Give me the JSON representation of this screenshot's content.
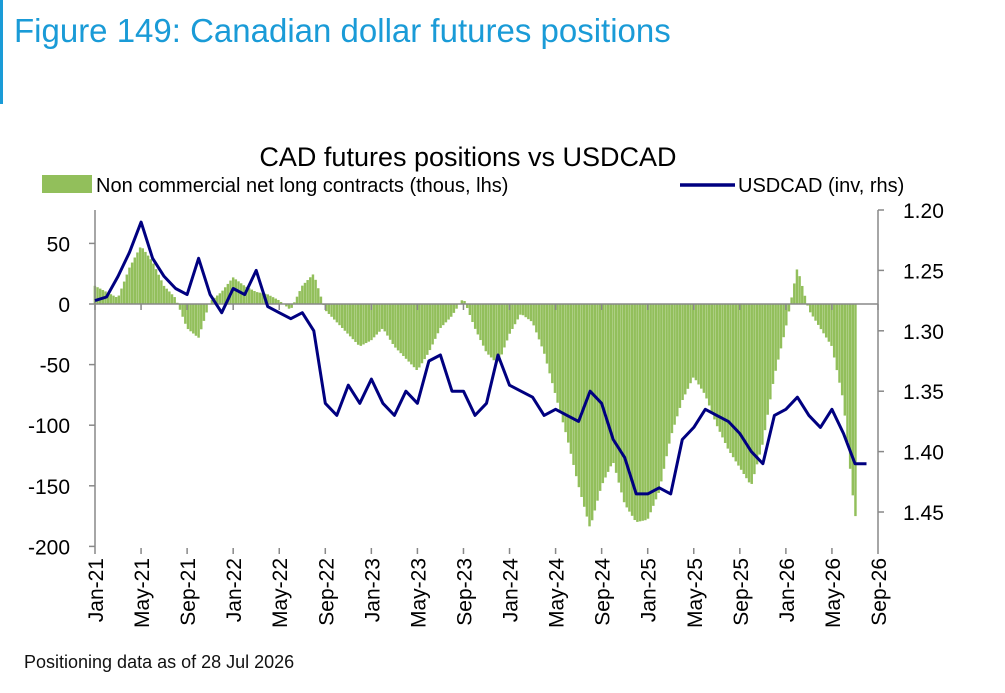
{
  "figure_title": "Figure 149: Canadian dollar futures positions",
  "footnote": "Positioning data as of 28 Jul 2026",
  "chart_data": {
    "type": "bar+line",
    "title": "CAD futures positions  vs USDCAD",
    "legend": {
      "placement": "top",
      "bar_label": "Non commercial net long contracts (thous, lhs)",
      "line_label": "USDCAD (inv, rhs)"
    },
    "colors": {
      "bar": "#92bf5b",
      "line": "#000080",
      "axis": "#888888"
    },
    "x_ticks": [
      "Jan-21",
      "May-21",
      "Sep-21",
      "Jan-22",
      "May-22",
      "Sep-22",
      "Jan-23",
      "May-23",
      "Sep-23",
      "Jan-24",
      "May-24",
      "Sep-24",
      "Jan-25",
      "May-25",
      "Sep-25",
      "Jan-26",
      "May-26",
      "Sep-26"
    ],
    "x_range": [
      "2021-01",
      "2026-09"
    ],
    "y_left": {
      "range": [
        -200,
        80
      ],
      "ticks": [
        -200,
        -150,
        -100,
        -50,
        0,
        50
      ]
    },
    "y_right": {
      "range": [
        1.2,
        1.48
      ],
      "inverted": true,
      "ticks": [
        "1.20",
        "1.25",
        "1.30",
        "1.35",
        "1.40",
        "1.45"
      ]
    },
    "series": [
      {
        "name": "Non commercial net long contracts (thous, lhs)",
        "kind": "bar",
        "points": [
          [
            "2021-01",
            15
          ],
          [
            "2021-02",
            10
          ],
          [
            "2021-03",
            5
          ],
          [
            "2021-04",
            30
          ],
          [
            "2021-05",
            48
          ],
          [
            "2021-06",
            35
          ],
          [
            "2021-07",
            15
          ],
          [
            "2021-08",
            5
          ],
          [
            "2021-09",
            -20
          ],
          [
            "2021-10",
            -28
          ],
          [
            "2021-11",
            2
          ],
          [
            "2021-12",
            10
          ],
          [
            "2022-01",
            22
          ],
          [
            "2022-02",
            15
          ],
          [
            "2022-03",
            10
          ],
          [
            "2022-04",
            8
          ],
          [
            "2022-05",
            3
          ],
          [
            "2022-06",
            -5
          ],
          [
            "2022-07",
            15
          ],
          [
            "2022-08",
            25
          ],
          [
            "2022-09",
            -5
          ],
          [
            "2022-10",
            -15
          ],
          [
            "2022-11",
            -25
          ],
          [
            "2022-12",
            -35
          ],
          [
            "2023-01",
            -30
          ],
          [
            "2023-02",
            -20
          ],
          [
            "2023-03",
            -35
          ],
          [
            "2023-04",
            -45
          ],
          [
            "2023-05",
            -55
          ],
          [
            "2023-06",
            -40
          ],
          [
            "2023-07",
            -20
          ],
          [
            "2023-08",
            -10
          ],
          [
            "2023-09",
            5
          ],
          [
            "2023-10",
            -20
          ],
          [
            "2023-11",
            -40
          ],
          [
            "2023-12",
            -50
          ],
          [
            "2024-01",
            -25
          ],
          [
            "2024-02",
            -8
          ],
          [
            "2024-03",
            -15
          ],
          [
            "2024-04",
            -40
          ],
          [
            "2024-05",
            -75
          ],
          [
            "2024-06",
            -110
          ],
          [
            "2024-07",
            -150
          ],
          [
            "2024-08",
            -185
          ],
          [
            "2024-09",
            -150
          ],
          [
            "2024-10",
            -130
          ],
          [
            "2024-11",
            -165
          ],
          [
            "2024-12",
            -180
          ],
          [
            "2025-01",
            -178
          ],
          [
            "2025-02",
            -155
          ],
          [
            "2025-03",
            -110
          ],
          [
            "2025-04",
            -80
          ],
          [
            "2025-05",
            -60
          ],
          [
            "2025-06",
            -75
          ],
          [
            "2025-07",
            -100
          ],
          [
            "2025-08",
            -120
          ],
          [
            "2025-09",
            -135
          ],
          [
            "2025-10",
            -150
          ],
          [
            "2025-11",
            -115
          ],
          [
            "2025-12",
            -60
          ],
          [
            "2026-01",
            -20
          ],
          [
            "2026-02",
            30
          ],
          [
            "2026-03",
            -5
          ],
          [
            "2026-04",
            -20
          ],
          [
            "2026-05",
            -35
          ],
          [
            "2026-06",
            -80
          ],
          [
            "2026-07",
            -175
          ]
        ]
      },
      {
        "name": "USDCAD (inv, rhs)",
        "kind": "line",
        "points": [
          [
            "2021-01",
            1.275
          ],
          [
            "2021-02",
            1.272
          ],
          [
            "2021-03",
            1.255
          ],
          [
            "2021-04",
            1.235
          ],
          [
            "2021-05",
            1.21
          ],
          [
            "2021-06",
            1.24
          ],
          [
            "2021-07",
            1.255
          ],
          [
            "2021-08",
            1.265
          ],
          [
            "2021-09",
            1.27
          ],
          [
            "2021-10",
            1.24
          ],
          [
            "2021-11",
            1.27
          ],
          [
            "2021-12",
            1.285
          ],
          [
            "2022-01",
            1.265
          ],
          [
            "2022-02",
            1.27
          ],
          [
            "2022-03",
            1.25
          ],
          [
            "2022-04",
            1.28
          ],
          [
            "2022-05",
            1.285
          ],
          [
            "2022-06",
            1.29
          ],
          [
            "2022-07",
            1.285
          ],
          [
            "2022-08",
            1.3
          ],
          [
            "2022-09",
            1.36
          ],
          [
            "2022-10",
            1.37
          ],
          [
            "2022-11",
            1.345
          ],
          [
            "2022-12",
            1.36
          ],
          [
            "2023-01",
            1.34
          ],
          [
            "2023-02",
            1.36
          ],
          [
            "2023-03",
            1.37
          ],
          [
            "2023-04",
            1.35
          ],
          [
            "2023-05",
            1.36
          ],
          [
            "2023-06",
            1.325
          ],
          [
            "2023-07",
            1.32
          ],
          [
            "2023-08",
            1.35
          ],
          [
            "2023-09",
            1.35
          ],
          [
            "2023-10",
            1.37
          ],
          [
            "2023-11",
            1.36
          ],
          [
            "2023-12",
            1.32
          ],
          [
            "2024-01",
            1.345
          ],
          [
            "2024-02",
            1.35
          ],
          [
            "2024-03",
            1.355
          ],
          [
            "2024-04",
            1.37
          ],
          [
            "2024-05",
            1.365
          ],
          [
            "2024-06",
            1.37
          ],
          [
            "2024-07",
            1.375
          ],
          [
            "2024-08",
            1.35
          ],
          [
            "2024-09",
            1.36
          ],
          [
            "2024-10",
            1.39
          ],
          [
            "2024-11",
            1.405
          ],
          [
            "2024-12",
            1.435
          ],
          [
            "2025-01",
            1.435
          ],
          [
            "2025-02",
            1.43
          ],
          [
            "2025-03",
            1.435
          ],
          [
            "2025-04",
            1.39
          ],
          [
            "2025-05",
            1.38
          ],
          [
            "2025-06",
            1.365
          ],
          [
            "2025-07",
            1.37
          ],
          [
            "2025-08",
            1.375
          ],
          [
            "2025-09",
            1.385
          ],
          [
            "2025-10",
            1.4
          ],
          [
            "2025-11",
            1.41
          ],
          [
            "2025-12",
            1.37
          ],
          [
            "2026-01",
            1.365
          ],
          [
            "2026-02",
            1.355
          ],
          [
            "2026-03",
            1.37
          ],
          [
            "2026-04",
            1.38
          ],
          [
            "2026-05",
            1.365
          ],
          [
            "2026-06",
            1.385
          ],
          [
            "2026-07",
            1.41
          ],
          [
            "2026-08",
            1.41
          ]
        ]
      }
    ]
  }
}
